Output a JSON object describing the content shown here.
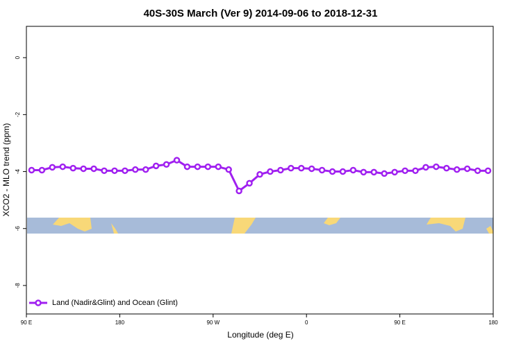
{
  "chart_data": {
    "type": "line",
    "title": "40S-30S March (Ver 9)   2014-09-06 to 2018-12-31",
    "x_label": "Longitude (deg E)",
    "y_label": "XCO2 - MLO trend (ppm)",
    "x": [
      95,
      105,
      115,
      125,
      135,
      145,
      155,
      165,
      175,
      185,
      195,
      205,
      215,
      225,
      235,
      245,
      255,
      265,
      275,
      285,
      295,
      305,
      315,
      325,
      335,
      345,
      355,
      365,
      375,
      385,
      395,
      405,
      415,
      425,
      435,
      445,
      455,
      465,
      475,
      485,
      495,
      505,
      515,
      525,
      535
    ],
    "series": [
      {
        "name": "Land (Nadir&Glint) and Ocean (Glint)",
        "color": "#a020f0",
        "values": [
          -3.95,
          -3.95,
          -3.85,
          -3.83,
          -3.88,
          -3.9,
          -3.9,
          -3.97,
          -3.97,
          -3.97,
          -3.93,
          -3.93,
          -3.8,
          -3.75,
          -3.6,
          -3.83,
          -3.83,
          -3.83,
          -3.83,
          -3.93,
          -4.68,
          -4.41,
          -4.1,
          -4.0,
          -3.95,
          -3.88,
          -3.88,
          -3.9,
          -3.95,
          -4.0,
          -4.0,
          -3.95,
          -4.02,
          -4.02,
          -4.07,
          -4.02,
          -3.97,
          -3.97,
          -3.85,
          -3.83,
          -3.88,
          -3.93,
          -3.9,
          -3.97,
          -3.97
        ]
      }
    ],
    "xlim": [
      90,
      540
    ],
    "xticks": [
      {
        "value": 90,
        "label": "90 E"
      },
      180,
      {
        "value": 270,
        "label": "90 W"
      },
      {
        "value": 360,
        "label": "0"
      },
      {
        "value": 450,
        "label": "90 E"
      },
      {
        "value": 540,
        "label": "180"
      }
    ],
    "ylim": [
      -9,
      1.1
    ],
    "yticks": [
      0,
      -2,
      -4,
      -6,
      -8
    ],
    "legend": "bottom-left"
  }
}
